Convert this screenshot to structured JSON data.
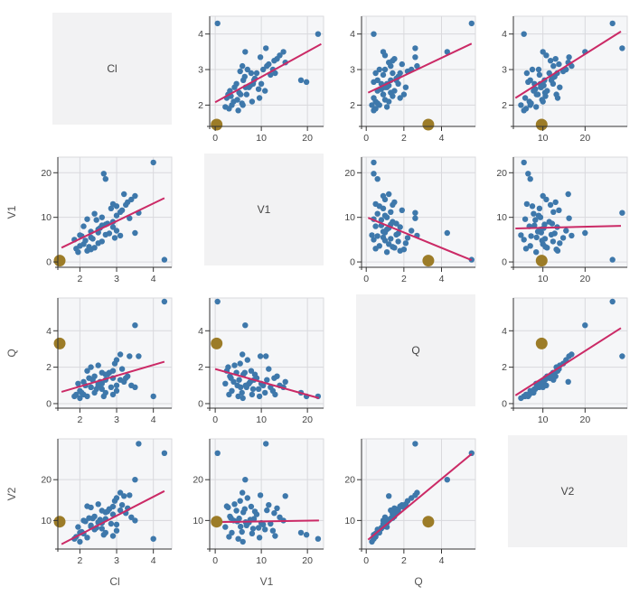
{
  "chart_data": {
    "type": "scatter",
    "subtype": "scatter-matrix-splom",
    "title": "",
    "variables": [
      "Cl",
      "V1",
      "Q",
      "V2"
    ],
    "diagonal_labels": [
      "Cl",
      "V1",
      "Q",
      "V2"
    ],
    "x_axis_titles": [
      "Cl",
      "V1",
      "Q"
    ],
    "y_axis_titles": [
      "V1",
      "Q",
      "V2"
    ],
    "grid": true,
    "legend": "none",
    "axes": {
      "Cl": {
        "range": [
          1.4,
          4.5
        ],
        "ticks": [
          2,
          3,
          4
        ]
      },
      "V1": {
        "range": [
          -1.2,
          23.5
        ],
        "ticks": [
          0,
          10,
          20
        ]
      },
      "Q": {
        "range": [
          -0.25,
          5.8
        ],
        "ticks": [
          0,
          2,
          4
        ]
      },
      "V2": {
        "range": [
          3,
          30
        ],
        "ticks": [
          10,
          20
        ]
      }
    },
    "points": {
      "Cl": [
        2.4,
        2.1,
        2.3,
        2.7,
        2.5,
        2.6,
        2.9,
        3.0,
        3.1,
        3.0,
        3.3,
        3.5,
        3.2,
        2.7,
        2.65,
        4.0,
        2.2,
        1.9,
        2.0,
        2.5,
        2.15,
        1.85,
        2.35,
        2.05,
        2.8,
        2.3,
        3.0,
        2.55,
        2.1,
        2.75,
        2.45,
        3.35,
        2.6,
        2.4,
        3.15,
        2.85,
        3.25,
        2.9,
        3.4,
        1.95,
        2.3,
        2.25,
        2.6,
        2.95,
        2.0,
        2.5,
        2.9,
        2.7,
        2.2,
        3.1,
        3.5,
        4.3,
        3.6
      ],
      "V1": [
        3.2,
        4.0,
        5.5,
        6.1,
        7.3,
        8.2,
        9.0,
        10.4,
        11.2,
        12.5,
        13.4,
        14.8,
        15.2,
        18.6,
        19.8,
        22.3,
        2.5,
        3.0,
        3.6,
        4.2,
        4.8,
        5.0,
        5.2,
        5.8,
        6.4,
        6.8,
        7.0,
        7.6,
        8.0,
        8.6,
        9.4,
        9.8,
        10.0,
        10.8,
        11.6,
        12.0,
        12.8,
        13.0,
        14.0,
        2.2,
        2.8,
        3.4,
        4.6,
        5.4,
        6.0,
        6.6,
        7.8,
        8.4,
        9.6,
        5.9,
        6.5,
        0.5,
        11.0
      ],
      "Q": [
        1.5,
        1.2,
        0.9,
        1.6,
        1.1,
        0.8,
        1.4,
        1.0,
        1.3,
        0.7,
        1.5,
        0.9,
        1.2,
        0.6,
        0.4,
        0.4,
        1.8,
        0.5,
        0.7,
        2.1,
        1.0,
        0.4,
        1.3,
        0.6,
        1.7,
        0.9,
        2.4,
        1.2,
        0.5,
        1.6,
        0.8,
        2.6,
        1.1,
        0.6,
        1.9,
        0.9,
        1.4,
        0.5,
        1.0,
        1.1,
        2.0,
        1.4,
        1.7,
        2.2,
        0.3,
        1.0,
        1.8,
        1.3,
        0.4,
        2.7,
        4.3,
        5.6,
        2.6
      ],
      "V2": [
        11,
        10,
        8.5,
        12,
        9.5,
        8,
        11.5,
        9,
        12.5,
        7.5,
        13,
        10,
        16,
        7.0,
        6.5,
        5.5,
        13.5,
        6,
        7,
        14,
        9.8,
        5.5,
        10.5,
        7.2,
        12.8,
        8.8,
        15.5,
        10.2,
        6.8,
        12.2,
        8.2,
        16.2,
        9.4,
        7.8,
        13.8,
        9.2,
        11.8,
        6.2,
        10.8,
        8.4,
        13.2,
        10.6,
        12.4,
        14.8,
        4.8,
        9.6,
        13.4,
        10.4,
        5.8,
        16.8,
        20.0,
        26.5,
        28.8
      ]
    },
    "highlight_point": {
      "Cl": 1.45,
      "V1": 0.3,
      "Q": 3.3,
      "V2": 9.7
    },
    "trendlines": {
      "Cl~V1": {
        "x": [
          0,
          23
        ],
        "y": [
          2.08,
          3.72
        ]
      },
      "Cl~Q": {
        "x": [
          0.1,
          5.6
        ],
        "y": [
          2.35,
          3.73
        ]
      },
      "Cl~V2": {
        "x": [
          3.5,
          28.5
        ],
        "y": [
          2.2,
          4.07
        ]
      },
      "V1~Cl": {
        "x": [
          1.5,
          4.3
        ],
        "y": [
          3.2,
          14.3
        ]
      },
      "V1~Q": {
        "x": [
          0.1,
          5.6
        ],
        "y": [
          9.9,
          0.4
        ]
      },
      "V1~V2": {
        "x": [
          3.5,
          28.5
        ],
        "y": [
          7.5,
          8.1
        ]
      },
      "Q~Cl": {
        "x": [
          1.5,
          4.3
        ],
        "y": [
          0.65,
          2.3
        ]
      },
      "Q~V1": {
        "x": [
          0,
          22.5
        ],
        "y": [
          1.9,
          0.3
        ]
      },
      "Q~V2": {
        "x": [
          3.5,
          28.5
        ],
        "y": [
          0.45,
          4.15
        ]
      },
      "V2~Cl": {
        "x": [
          1.5,
          4.3
        ],
        "y": [
          4.2,
          17.2
        ]
      },
      "V2~V1": {
        "x": [
          0,
          22.5
        ],
        "y": [
          9.6,
          10.0
        ]
      },
      "V2~Q": {
        "x": [
          0.1,
          5.6
        ],
        "y": [
          5.3,
          26.3
        ]
      }
    },
    "colors": {
      "point": "#3e78ab",
      "trend": "#cb2a66",
      "highlight": "#9c7c28",
      "grid": "#d9d9dd",
      "axis": "#333333",
      "tick_text": "#444444",
      "title_text": "#555555",
      "plot_bg": "#f5f6f8",
      "diag_bg": "#f2f2f3"
    }
  }
}
